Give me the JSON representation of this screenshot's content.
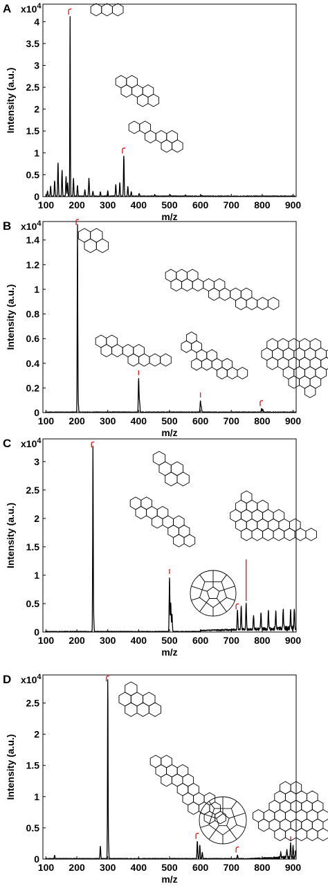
{
  "colors": {
    "spectrum": "#000000",
    "annotation": "#e02020",
    "background": "#ffffff"
  },
  "chart_data": [
    {
      "panel": "A",
      "type": "line",
      "multiplier": "x10",
      "multiplier_exp": "4",
      "xlabel": "m/z",
      "ylabel": "Intensity (a.u.)",
      "xlim": [
        90,
        910
      ],
      "ylim": [
        0,
        4.4
      ],
      "xticks": [
        "100",
        "200",
        "300",
        "400",
        "500",
        "600",
        "700",
        "800",
        "900"
      ],
      "yticks": [
        "0",
        "0.5",
        "1",
        "1.5",
        "2",
        "2.5",
        "3",
        "3.5",
        "4"
      ],
      "peaks": [
        [
          105,
          0.12
        ],
        [
          115,
          0.22
        ],
        [
          128,
          0.35
        ],
        [
          139,
          0.75
        ],
        [
          152,
          0.6
        ],
        [
          165,
          0.45
        ],
        [
          170,
          0.3
        ],
        [
          178,
          4.1
        ],
        [
          189,
          0.4
        ],
        [
          202,
          0.25
        ],
        [
          226,
          0.15
        ],
        [
          239,
          0.42
        ],
        [
          252,
          0.12
        ],
        [
          276,
          0.1
        ],
        [
          300,
          0.12
        ],
        [
          326,
          0.26
        ],
        [
          339,
          0.3
        ],
        [
          352,
          0.92
        ],
        [
          365,
          0.22
        ],
        [
          376,
          0.1
        ],
        [
          402,
          0.06
        ],
        [
          452,
          0.04
        ],
        [
          502,
          0.03
        ],
        [
          552,
          0.03
        ],
        [
          604,
          0.02
        ]
      ],
      "annotations": [
        [
          178,
          "hook"
        ],
        [
          352,
          "hook"
        ]
      ],
      "molecules": [
        {
          "rings": [
            [
              0,
              0
            ],
            [
              1,
              0
            ],
            [
              2,
              0
            ]
          ],
          "at": [
            139,
            14
          ],
          "r": 9
        },
        {
          "rings": [
            [
              0,
              0
            ],
            [
              1,
              0
            ],
            [
              0,
              1
            ],
            [
              1,
              1
            ],
            [
              2,
              1
            ],
            [
              1,
              2
            ],
            [
              2,
              2
            ]
          ],
          "at": [
            175,
            118
          ],
          "r": 9
        },
        {
          "rings": [
            [
              0,
              0
            ],
            [
              1,
              0
            ],
            [
              1,
              1
            ],
            [
              2,
              1
            ],
            [
              3,
              1
            ],
            [
              2,
              2
            ],
            [
              3,
              2
            ]
          ],
          "at": [
            194,
            184
          ],
          "r": 9
        }
      ]
    },
    {
      "panel": "B",
      "type": "line",
      "multiplier": "x10",
      "multiplier_exp": "4",
      "xlabel": "m/z",
      "ylabel": "Intensity (a.u.)",
      "xlim": [
        90,
        910
      ],
      "ylim": [
        0,
        1.55
      ],
      "xticks": [
        "100",
        "200",
        "300",
        "400",
        "500",
        "600",
        "700",
        "800",
        "900"
      ],
      "yticks": [
        "0",
        "0.2",
        "0.4",
        "0.6",
        "0.8",
        "1",
        "1.2",
        "1.4"
      ],
      "peaks": [
        [
          202,
          1.5
        ],
        [
          204,
          0.1
        ],
        [
          400,
          0.27
        ],
        [
          403,
          0.08
        ],
        [
          600,
          0.09
        ],
        [
          603,
          0.04
        ],
        [
          798,
          0.03
        ],
        [
          802,
          0.025
        ]
      ],
      "annotations": [
        [
          202,
          "hook"
        ],
        [
          400,
          "tick"
        ],
        [
          600,
          "tick"
        ],
        [
          798,
          "hook"
        ]
      ],
      "molecules": [
        {
          "rings": [
            [
              0,
              0
            ],
            [
              1,
              0
            ],
            [
              0,
              1
            ],
            [
              1,
              1
            ]
          ],
          "at": [
            122,
            340
          ],
          "r": 10
        },
        {
          "rings": [
            [
              0,
              0
            ],
            [
              1,
              0
            ],
            [
              2,
              0
            ],
            [
              0,
              1
            ],
            [
              1,
              1
            ],
            [
              2,
              1
            ],
            [
              3,
              1
            ],
            [
              4,
              1
            ],
            [
              3,
              2
            ],
            [
              4,
              2
            ],
            [
              5,
              2
            ],
            [
              6,
              2
            ],
            [
              5,
              3
            ],
            [
              6,
              3
            ],
            [
              7,
              3
            ],
            [
              8,
              3
            ]
          ],
          "at": [
            247,
            398
          ],
          "r": 9
        },
        {
          "rings": [
            [
              0,
              0
            ],
            [
              1,
              0
            ],
            [
              0,
              1
            ],
            [
              1,
              1
            ],
            [
              2,
              1
            ],
            [
              3,
              1
            ],
            [
              2,
              2
            ],
            [
              3,
              2
            ],
            [
              4,
              2
            ],
            [
              5,
              2
            ]
          ],
          "at": [
            146,
            493
          ],
          "r": 9
        },
        {
          "rings": [
            [
              1,
              0
            ],
            [
              0,
              1
            ],
            [
              1,
              1
            ],
            [
              1,
              2
            ],
            [
              2,
              2
            ],
            [
              0,
              3
            ],
            [
              1,
              3
            ],
            [
              2,
              3
            ],
            [
              3,
              3
            ],
            [
              2,
              4
            ],
            [
              3,
              4
            ],
            [
              4,
              4
            ]
          ],
          "at": [
            262,
            488
          ],
          "r": 8.5
        },
        {
          "rings": [
            [
              1,
              0
            ],
            [
              2,
              0
            ],
            [
              3,
              0
            ],
            [
              4,
              0
            ],
            [
              5,
              0
            ],
            [
              0,
              1
            ],
            [
              1,
              1
            ],
            [
              2,
              1
            ],
            [
              3,
              1
            ],
            [
              4,
              1
            ],
            [
              5,
              1
            ],
            [
              6,
              1
            ],
            [
              0,
              2
            ],
            [
              1,
              2
            ],
            [
              2,
              2
            ],
            [
              3,
              2
            ],
            [
              4,
              2
            ],
            [
              5,
              2
            ],
            [
              1,
              3
            ],
            [
              2,
              3
            ],
            [
              3,
              3
            ],
            [
              4,
              3
            ],
            [
              1,
              4
            ],
            [
              2,
              4
            ],
            [
              3,
              4
            ],
            [
              2,
              5
            ]
          ],
          "at": [
            378,
            498
          ],
          "r": 9
        }
      ]
    },
    {
      "panel": "C",
      "type": "line",
      "multiplier": "x10",
      "multiplier_exp": "4",
      "xlabel": "m/z",
      "ylabel": "Intensity (a.u.)",
      "xlim": [
        90,
        910
      ],
      "ylim": [
        0,
        3.4
      ],
      "xticks": [
        "100",
        "200",
        "300",
        "400",
        "500",
        "600",
        "700",
        "800",
        "900"
      ],
      "yticks": [
        "0",
        "0.5",
        "1",
        "1.5",
        "2",
        "2.5",
        "3"
      ],
      "peaks": [
        [
          252,
          3.2
        ],
        [
          254,
          0.3
        ],
        [
          500,
          0.95
        ],
        [
          504,
          0.5
        ],
        [
          508,
          0.3
        ],
        [
          720,
          0.35
        ],
        [
          732,
          0.4
        ],
        [
          748,
          0.45
        ],
        [
          772,
          0.25
        ],
        [
          796,
          0.3
        ],
        [
          820,
          0.32
        ],
        [
          844,
          0.3
        ],
        [
          868,
          0.34
        ],
        [
          892,
          0.32
        ],
        [
          904,
          0.36
        ]
      ],
      "annotations": [
        [
          252,
          "hook"
        ],
        [
          500,
          "tick"
        ],
        [
          720,
          "hook"
        ],
        [
          748,
          "line"
        ]
      ],
      "molecules": [
        {
          "rings": [
            [
              0,
              0
            ],
            [
              0,
              1
            ],
            [
              1,
              1
            ],
            [
              0,
              2
            ],
            [
              1,
              2
            ]
          ],
          "at": [
            230,
            662
          ],
          "r": 10
        },
        {
          "rings": [
            [
              0,
              0
            ],
            [
              1,
              0
            ],
            [
              0,
              1
            ],
            [
              1,
              1
            ],
            [
              2,
              1
            ],
            [
              1,
              2
            ],
            [
              2,
              2
            ],
            [
              3,
              2
            ],
            [
              2,
              3
            ],
            [
              3,
              3
            ],
            [
              2,
              4
            ],
            [
              3,
              4
            ]
          ],
          "at": [
            196,
            727
          ],
          "r": 9
        },
        {
          "rings": [
            [
              2,
              0
            ],
            [
              1,
              1
            ],
            [
              2,
              1
            ],
            [
              3,
              1
            ],
            [
              0,
              2
            ],
            [
              1,
              2
            ],
            [
              2,
              2
            ],
            [
              3,
              2
            ],
            [
              4,
              2
            ],
            [
              0,
              3
            ],
            [
              1,
              3
            ],
            [
              2,
              3
            ],
            [
              3,
              3
            ],
            [
              4,
              3
            ],
            [
              5,
              3
            ],
            [
              0,
              4
            ],
            [
              1,
              4
            ],
            [
              2,
              4
            ],
            [
              3,
              4
            ],
            [
              4,
              4
            ],
            [
              5,
              4
            ],
            [
              6,
              4
            ]
          ],
          "at": [
            325,
            718
          ],
          "r": 9
        }
      ]
    },
    {
      "panel": "D",
      "type": "line",
      "multiplier": "x10",
      "multiplier_exp": "4",
      "xlabel": "m/z",
      "ylabel": "Intensity (a.u.)",
      "xlim": [
        90,
        910
      ],
      "ylim": [
        0,
        2.95
      ],
      "xticks": [
        "100",
        "200",
        "300",
        "400",
        "500",
        "600",
        "700",
        "800",
        "900"
      ],
      "yticks": [
        "0",
        "0.5",
        "1",
        "1.5",
        "2",
        "2.5"
      ],
      "peaks": [
        [
          128,
          0.05
        ],
        [
          276,
          0.2
        ],
        [
          300,
          2.8
        ],
        [
          302,
          0.3
        ],
        [
          590,
          0.28
        ],
        [
          598,
          0.22
        ],
        [
          606,
          0.1
        ],
        [
          720,
          0.06
        ],
        [
          860,
          0.08
        ],
        [
          880,
          0.12
        ],
        [
          892,
          0.22
        ],
        [
          900,
          0.18
        ],
        [
          908,
          0.1
        ]
      ],
      "annotations": [
        [
          300,
          "hook"
        ],
        [
          590,
          "hook"
        ],
        [
          720,
          "hook"
        ],
        [
          892,
          "tick"
        ]
      ],
      "molecules": [
        {
          "rings": [
            [
              1,
              0
            ],
            [
              0,
              1
            ],
            [
              1,
              1
            ],
            [
              2,
              1
            ],
            [
              0,
              2
            ],
            [
              1,
              2
            ],
            [
              2,
              2
            ]
          ],
          "at": [
            172,
            995
          ],
          "r": 10
        },
        {
          "rings": [
            [
              0,
              0
            ],
            [
              1,
              0
            ],
            [
              0,
              1
            ],
            [
              1,
              1
            ],
            [
              2,
              1
            ],
            [
              0,
              2
            ],
            [
              1,
              2
            ],
            [
              2,
              2
            ],
            [
              1,
              3
            ],
            [
              2,
              3
            ],
            [
              1,
              4
            ],
            [
              2,
              4
            ],
            [
              3,
              4
            ],
            [
              1,
              5
            ],
            [
              2,
              5
            ],
            [
              3,
              5
            ],
            [
              2,
              6
            ],
            [
              3,
              6
            ]
          ],
          "at": [
            225,
            1100
          ],
          "r": 9
        },
        {
          "rings": [
            [
              4,
              0
            ],
            [
              5,
              0
            ],
            [
              3,
              1
            ],
            [
              4,
              1
            ],
            [
              5,
              1
            ],
            [
              6,
              1
            ],
            [
              2,
              2
            ],
            [
              3,
              2
            ],
            [
              4,
              2
            ],
            [
              5,
              2
            ],
            [
              6,
              2
            ],
            [
              0,
              3
            ],
            [
              1,
              3
            ],
            [
              2,
              3
            ],
            [
              3,
              3
            ],
            [
              4,
              3
            ],
            [
              5,
              3
            ],
            [
              6,
              3
            ],
            [
              0,
              4
            ],
            [
              1,
              4
            ],
            [
              2,
              4
            ],
            [
              3,
              4
            ],
            [
              4,
              4
            ],
            [
              5,
              4
            ],
            [
              1,
              5
            ],
            [
              2,
              5
            ],
            [
              3,
              5
            ],
            [
              4,
              5
            ],
            [
              5,
              5
            ]
          ],
          "at": [
            350,
            1138
          ],
          "r": 9
        }
      ]
    }
  ]
}
